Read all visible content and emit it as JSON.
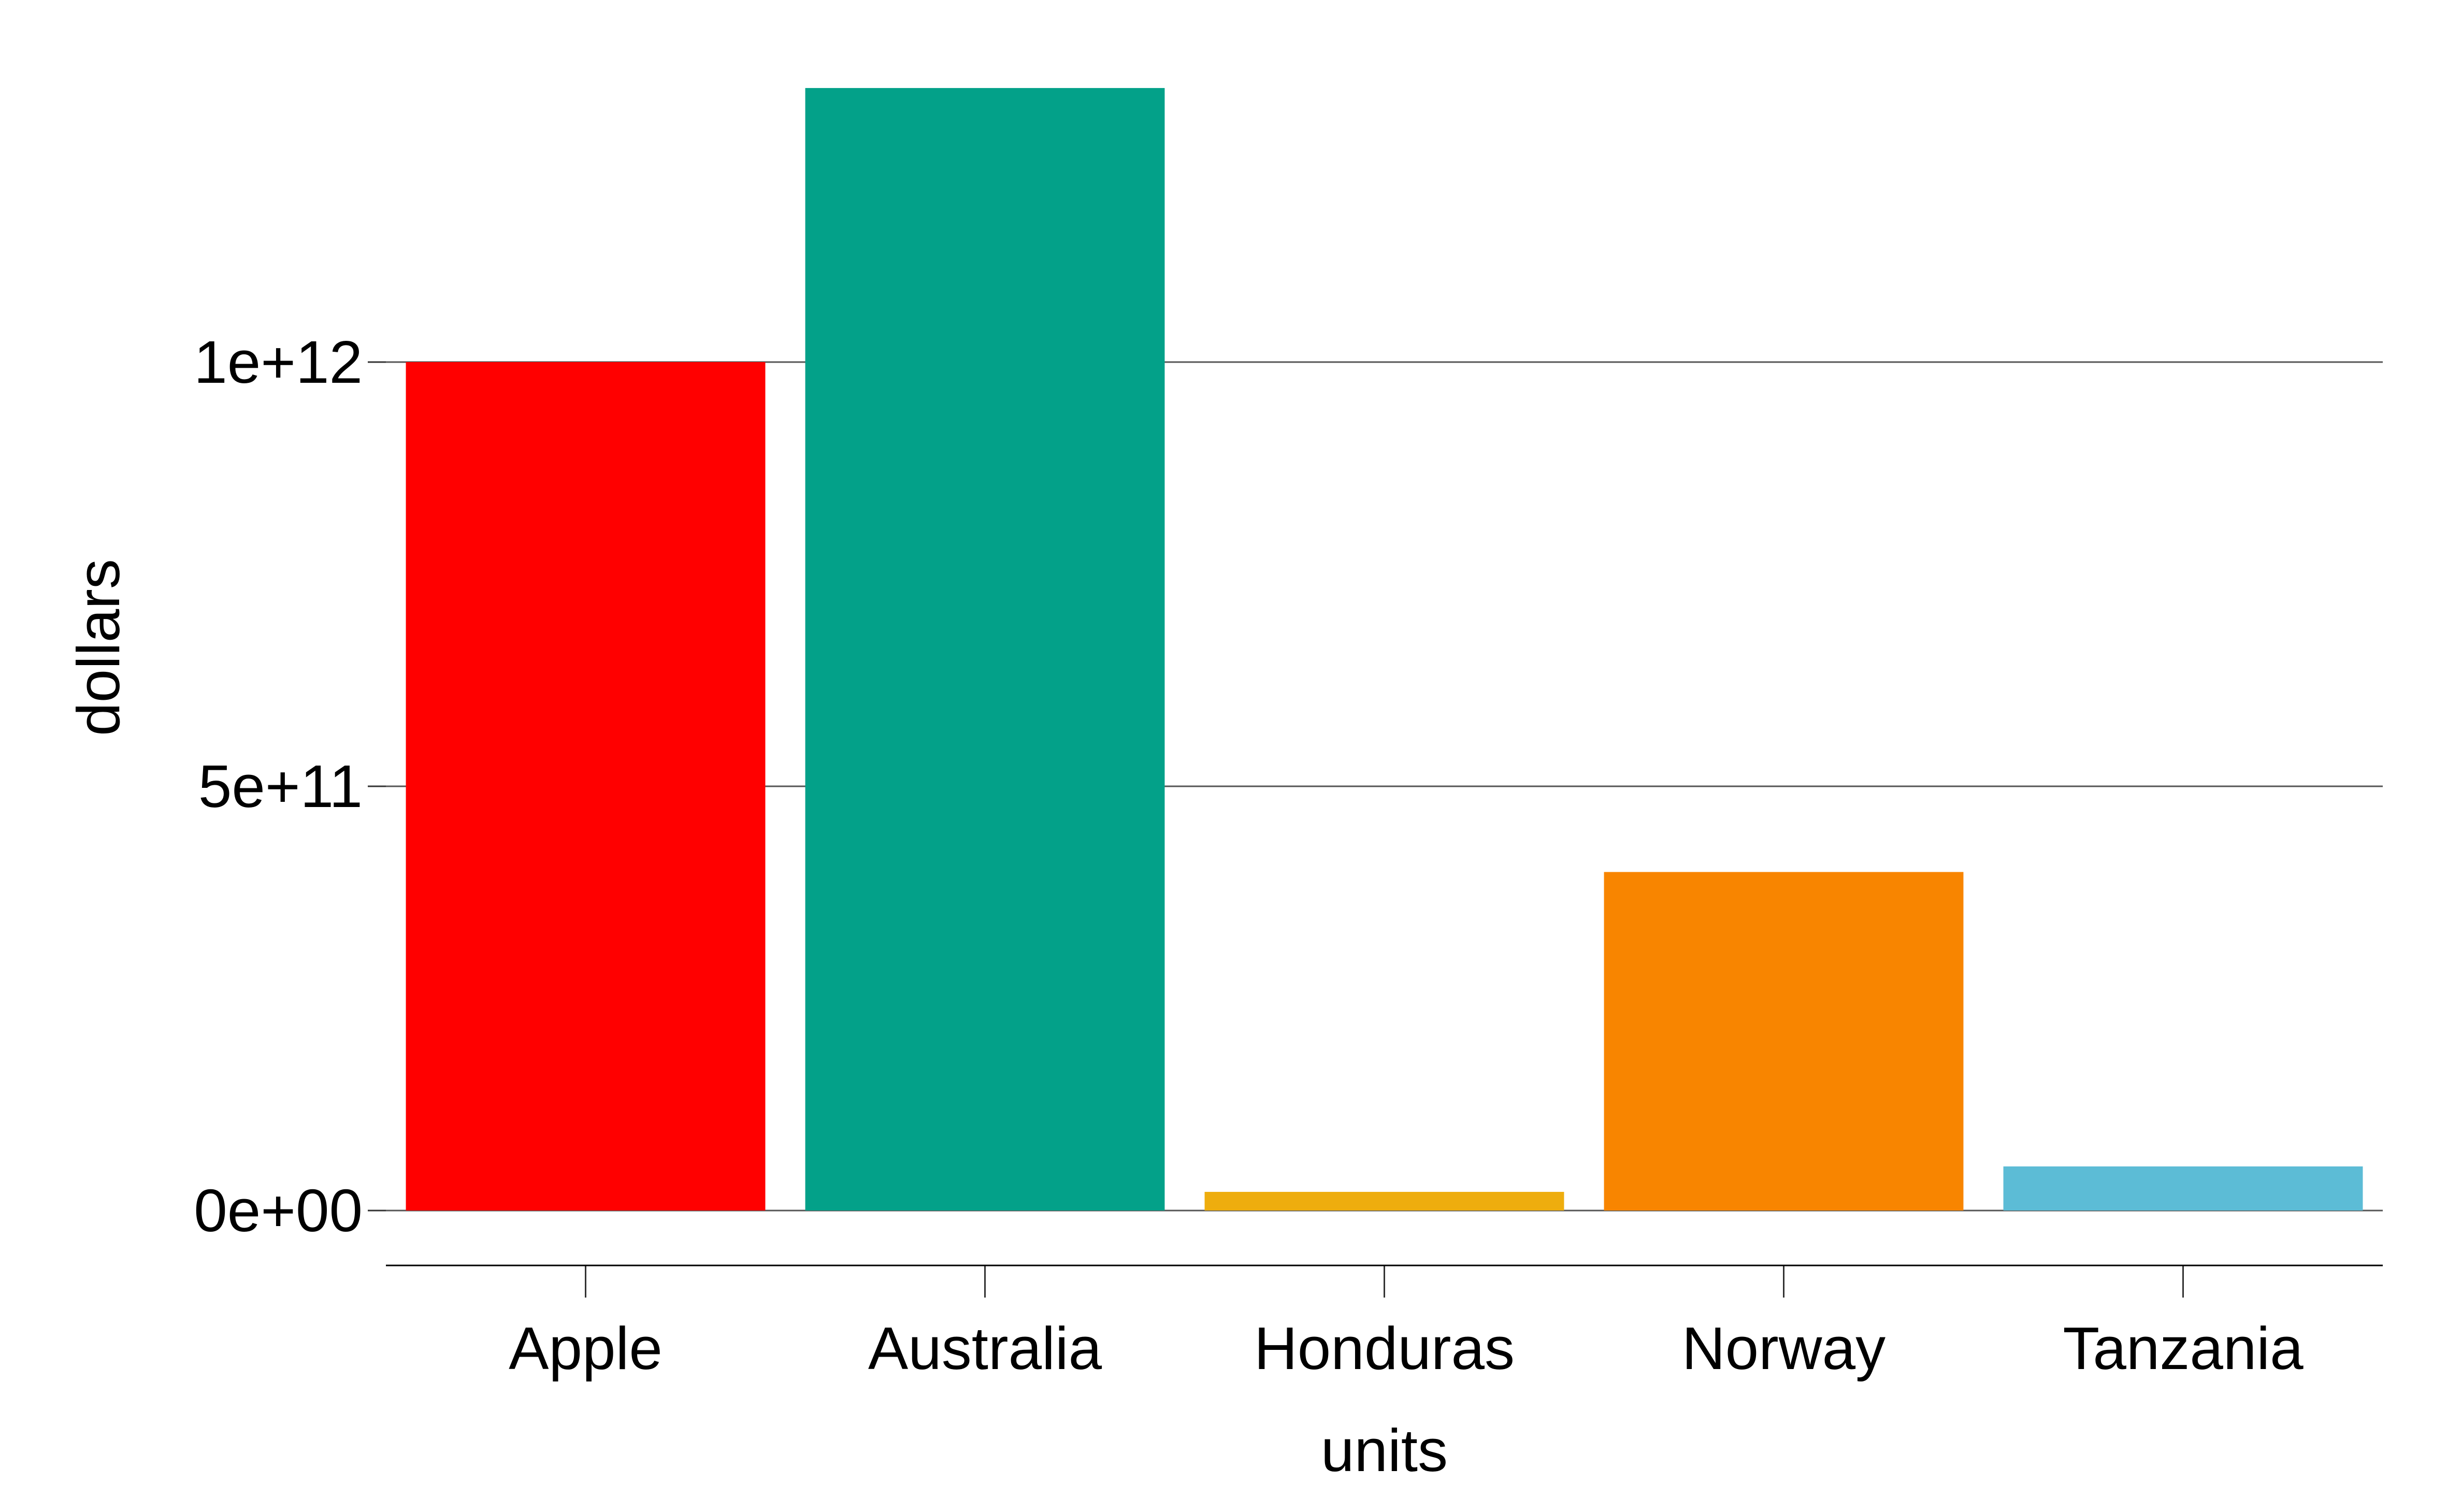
{
  "chart_data": {
    "type": "bar",
    "categories": [
      "Apple",
      "Australia",
      "Honduras",
      "Norway",
      "Tanzania"
    ],
    "values": [
      1000000000000,
      1323000000000,
      22000000000,
      399000000000,
      52000000000
    ],
    "colors": [
      "#FF0000",
      "#03A189",
      "#EEAD0E",
      "#F88500",
      "#5CBCD6"
    ],
    "title": "",
    "xlabel": "units",
    "ylabel": "dollars",
    "ylim": [
      -65000000000,
      1390000000000
    ],
    "y_ticks": [
      0,
      500000000000,
      1000000000000
    ],
    "y_tick_labels": [
      "0e+00",
      "5e+11",
      "1e+12"
    ],
    "grid": "horizontal major lines only",
    "legend": "none"
  }
}
